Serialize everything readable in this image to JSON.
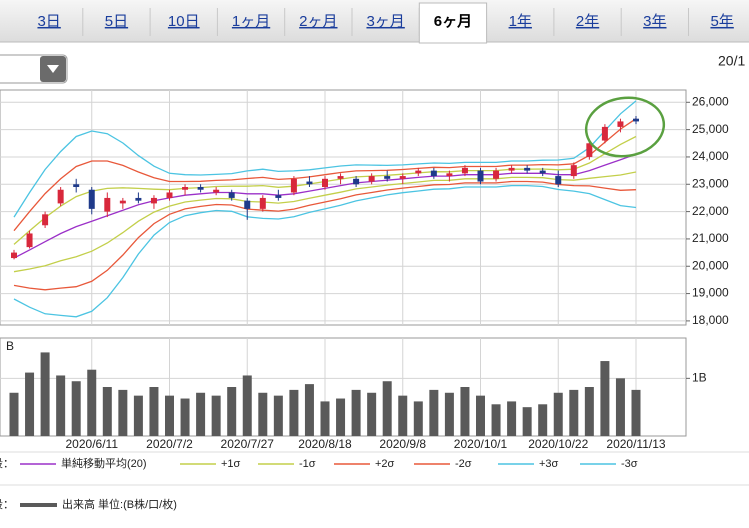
{
  "tabs": {
    "items": [
      "3日",
      "5日",
      "10日",
      "1ヶ月",
      "2ヶ月",
      "3ヶ月",
      "6ヶ月",
      "1年",
      "2年",
      "3年",
      "5年"
    ],
    "selected": 6
  },
  "date_label": "20/1",
  "chart_data": [
    {
      "type": "candlestick",
      "legend_label": "段：",
      "ylim": [
        17850,
        26450
      ],
      "yticks": [
        {
          "value": 26000,
          "label": "26,000"
        },
        {
          "value": 25000,
          "label": "25,000"
        },
        {
          "value": 24000,
          "label": "24,000"
        },
        {
          "value": 23000,
          "label": "23,000"
        },
        {
          "value": 22000,
          "label": "22,000"
        },
        {
          "value": 21000,
          "label": "21,000"
        },
        {
          "value": 20000,
          "label": "20,000"
        },
        {
          "value": 19000,
          "label": "19,000"
        },
        {
          "value": 18000,
          "label": "18,000"
        }
      ],
      "grid": true,
      "up_color": "#d8283c",
      "down_color": "#1f3a8a",
      "open": [
        20300,
        20700,
        21500,
        22300,
        23000,
        22800,
        22000,
        22300,
        22500,
        22300,
        22500,
        22800,
        22900,
        22700,
        22700,
        22400,
        22100,
        22600,
        22700,
        23100,
        22900,
        23200,
        23200,
        23100,
        23300,
        23200,
        23400,
        23500,
        23300,
        23400,
        23500,
        23200,
        23500,
        23600,
        23500,
        23300,
        23300,
        24000,
        24600,
        25100,
        25400
      ],
      "high": [
        20600,
        21300,
        22000,
        22900,
        23200,
        22900,
        22700,
        22500,
        22700,
        22600,
        22800,
        23000,
        23000,
        22900,
        22800,
        22500,
        22600,
        22800,
        23300,
        23300,
        23300,
        23400,
        23300,
        23400,
        23500,
        23400,
        23600,
        23600,
        23500,
        23700,
        23600,
        23600,
        23700,
        23700,
        23600,
        23500,
        23800,
        24600,
        25200,
        25400,
        25500
      ],
      "low": [
        20250,
        20650,
        21400,
        22200,
        22700,
        21900,
        21800,
        22100,
        22300,
        22100,
        22400,
        22600,
        22700,
        22600,
        22400,
        21700,
        22000,
        22400,
        22600,
        22900,
        22800,
        23000,
        22900,
        23000,
        23100,
        23000,
        23300,
        23200,
        23100,
        23300,
        23000,
        23100,
        23400,
        23400,
        23300,
        22900,
        23200,
        23900,
        24500,
        24900,
        25200
      ],
      "close": [
        20500,
        21200,
        21900,
        22800,
        22900,
        22100,
        22500,
        22400,
        22400,
        22500,
        22700,
        22900,
        22800,
        22800,
        22500,
        22100,
        22500,
        22500,
        23200,
        23000,
        23200,
        23300,
        23000,
        23300,
        23200,
        23300,
        23500,
        23300,
        23400,
        23600,
        23100,
        23500,
        23600,
        23500,
        23400,
        23000,
        23700,
        24500,
        25100,
        25300,
        25300
      ],
      "series": [
        {
          "name": "単純移動平均(20)",
          "color": "#9b30c8",
          "values": [
            20300,
            20600,
            20900,
            21200,
            21450,
            21650,
            21850,
            22050,
            22250,
            22400,
            22500,
            22600,
            22650,
            22700,
            22700,
            22650,
            22650,
            22600,
            22650,
            22750,
            22850,
            22950,
            23050,
            23100,
            23150,
            23200,
            23250,
            23300,
            23300,
            23350,
            23350,
            23350,
            23400,
            23400,
            23400,
            23350,
            23350,
            23500,
            23700,
            23900,
            24100
          ]
        },
        {
          "name": "+1σ",
          "color": "#c3cf4a",
          "values": [
            20800,
            21300,
            21780,
            22200,
            22550,
            22750,
            22850,
            22870,
            22850,
            22820,
            22800,
            22850,
            22880,
            22920,
            22930,
            22930,
            22950,
            22890,
            22930,
            23010,
            23100,
            23190,
            23270,
            23300,
            23330,
            23370,
            23415,
            23460,
            23455,
            23500,
            23500,
            23500,
            23550,
            23550,
            23560,
            23530,
            23550,
            23780,
            24120,
            24460,
            24750
          ]
        },
        {
          "name": "-1σ",
          "color": "#c3cf4a",
          "values": [
            19800,
            19900,
            20020,
            20200,
            20350,
            20550,
            20850,
            21230,
            21650,
            21980,
            22200,
            22350,
            22420,
            22480,
            22470,
            22370,
            22350,
            22310,
            22370,
            22490,
            22600,
            22710,
            22830,
            22900,
            22970,
            23030,
            23085,
            23140,
            23145,
            23200,
            23200,
            23200,
            23250,
            23250,
            23240,
            23170,
            23150,
            23220,
            23280,
            23340,
            23450
          ]
        },
        {
          "name": "+2σ",
          "color": "#e8583a",
          "values": [
            21300,
            22000,
            22660,
            23200,
            23650,
            23850,
            23850,
            23690,
            23450,
            23240,
            23100,
            23100,
            23110,
            23140,
            23160,
            23210,
            23250,
            23180,
            23210,
            23270,
            23350,
            23430,
            23490,
            23500,
            23510,
            23540,
            23580,
            23620,
            23610,
            23650,
            23650,
            23650,
            23700,
            23700,
            23720,
            23710,
            23750,
            24060,
            24540,
            25020,
            25400
          ]
        },
        {
          "name": "-2σ",
          "color": "#e8583a",
          "values": [
            19300,
            19200,
            19140,
            19200,
            19250,
            19450,
            19850,
            20410,
            21050,
            21560,
            21900,
            22100,
            22190,
            22260,
            22240,
            22090,
            22050,
            22020,
            22090,
            22230,
            22350,
            22470,
            22610,
            22700,
            22790,
            22860,
            22920,
            22980,
            22990,
            23050,
            23050,
            23050,
            23100,
            23100,
            23080,
            22990,
            22950,
            22940,
            22860,
            22780,
            22800
          ]
        },
        {
          "name": "+3σ",
          "color": "#4cc4e2",
          "values": [
            21800,
            22700,
            23540,
            24200,
            24750,
            24950,
            24850,
            24510,
            24050,
            23660,
            23400,
            23350,
            23340,
            23360,
            23390,
            23490,
            23550,
            23470,
            23490,
            23530,
            23600,
            23670,
            23710,
            23700,
            23690,
            23710,
            23745,
            23780,
            23765,
            23800,
            23800,
            23800,
            23850,
            23850,
            23880,
            23890,
            23950,
            24340,
            24960,
            25580,
            26050
          ]
        },
        {
          "name": "-3σ",
          "color": "#4cc4e2",
          "values": [
            18800,
            18500,
            18260,
            18200,
            18150,
            18350,
            18850,
            19590,
            20450,
            21140,
            21600,
            21850,
            21960,
            22040,
            22010,
            21810,
            21750,
            21730,
            21810,
            21970,
            22100,
            22230,
            22390,
            22500,
            22610,
            22690,
            22755,
            22820,
            22835,
            22900,
            22900,
            22900,
            22950,
            22950,
            22920,
            22810,
            22750,
            22660,
            22440,
            22220,
            22150
          ]
        }
      ]
    },
    {
      "type": "bar",
      "legend_label": "段：",
      "unit_label": "：B",
      "categories": [
        null,
        null,
        null,
        null,
        null,
        "2020/6/11",
        null,
        null,
        null,
        null,
        "2020/7/2",
        null,
        null,
        null,
        null,
        "2020/7/27",
        null,
        null,
        null,
        null,
        "2020/8/18",
        null,
        null,
        null,
        null,
        "2020/9/8",
        null,
        null,
        null,
        null,
        "2020/10/1",
        null,
        null,
        null,
        null,
        "2020/10/22",
        null,
        null,
        null,
        null,
        "2020/11/13"
      ],
      "ylim": [
        0,
        1.7
      ],
      "yticks": [
        {
          "value": 1,
          "label": "1B"
        }
      ],
      "grid": true,
      "series": [
        {
          "name": "出来高 単位:(B株/口/枚)",
          "color": "#5a5a5a",
          "values": [
            0.75,
            1.1,
            1.45,
            1.05,
            0.95,
            1.15,
            0.85,
            0.8,
            0.7,
            0.85,
            0.7,
            0.65,
            0.75,
            0.7,
            0.85,
            1.05,
            0.75,
            0.7,
            0.8,
            0.9,
            0.6,
            0.65,
            0.8,
            0.75,
            0.95,
            0.7,
            0.6,
            0.8,
            0.75,
            0.85,
            0.7,
            0.55,
            0.6,
            0.5,
            0.55,
            0.75,
            0.8,
            0.85,
            1.3,
            1.0,
            0.8
          ]
        }
      ]
    }
  ]
}
